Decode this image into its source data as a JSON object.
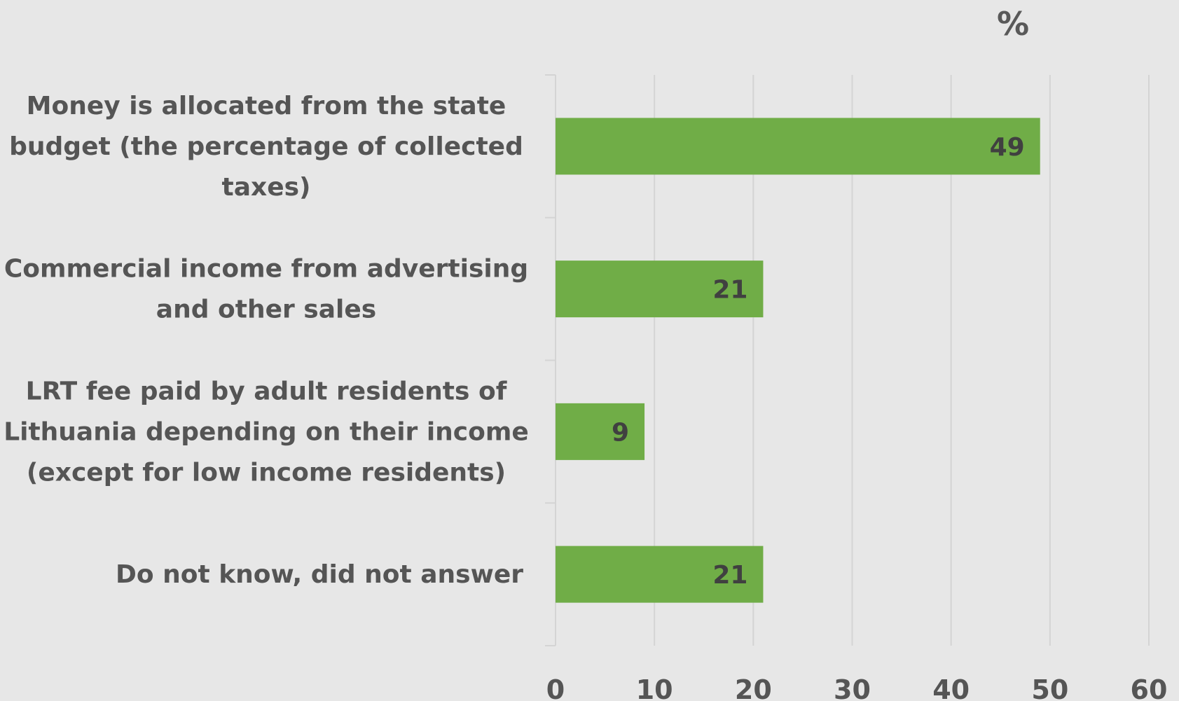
{
  "chart_data": {
    "type": "bar",
    "orientation": "horizontal",
    "unit_label": "%",
    "categories": [
      [
        "Money is allocated from the state",
        "budget (the percentage of collected",
        "taxes)"
      ],
      [
        "Commercial income from advertising",
        "and other sales"
      ],
      [
        "LRT fee paid by adult residents of",
        "Lithuania depending on their income",
        "(except for low income residents)"
      ],
      [
        "Do not know, did not answer"
      ]
    ],
    "values": [
      49,
      21,
      9,
      21
    ],
    "x_ticks": [
      0,
      10,
      20,
      30,
      40,
      50,
      60
    ],
    "xlim": [
      0,
      60
    ],
    "grid": true,
    "bar_color": "#70ad47",
    "gridline_color": "#d4d4d4",
    "text_color": "#555555"
  }
}
